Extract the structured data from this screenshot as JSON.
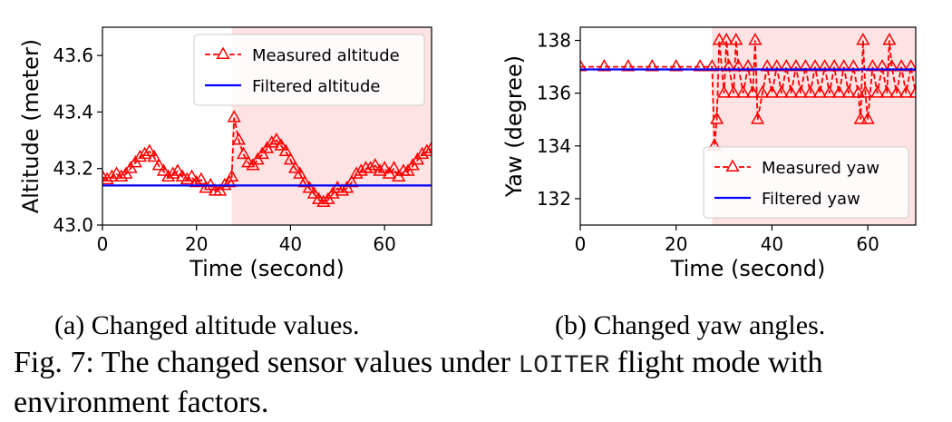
{
  "chart_data": [
    {
      "type": "line",
      "panel": "a",
      "xlabel": "Time (second)",
      "ylabel": "Altitude (meter)",
      "xlim": [
        0,
        70
      ],
      "ylim": [
        43.0,
        43.7
      ],
      "xticks": [
        0,
        20,
        40,
        60
      ],
      "yticks": [
        43.0,
        43.2,
        43.4,
        43.6
      ],
      "ytick_labels": [
        "43.0",
        "43.2",
        "43.4",
        "43.6"
      ],
      "shaded_region": [
        27.5,
        70
      ],
      "legend_position": "top-right",
      "grid": false,
      "series": [
        {
          "name": "Measured altitude",
          "color": "#ff0000",
          "style": "dashed-triangle",
          "x": [
            0,
            1,
            2,
            3,
            4,
            5,
            6,
            7,
            8,
            9,
            10,
            11,
            12,
            13,
            14,
            15,
            16,
            17,
            18,
            19,
            20,
            21,
            22,
            23,
            24,
            25,
            26,
            27,
            27.5,
            28,
            29,
            30,
            31,
            32,
            33,
            34,
            35,
            36,
            37,
            38,
            39,
            40,
            41,
            42,
            43,
            44,
            45,
            46,
            47,
            48,
            49,
            50,
            51,
            52,
            53,
            54,
            55,
            56,
            57,
            58,
            59,
            60,
            61,
            62,
            63,
            64,
            65,
            66,
            67,
            68,
            69,
            70
          ],
          "y": [
            43.17,
            43.16,
            43.17,
            43.18,
            43.17,
            43.18,
            43.2,
            43.22,
            43.24,
            43.25,
            43.26,
            43.24,
            43.21,
            43.19,
            43.17,
            43.18,
            43.19,
            43.17,
            43.16,
            43.17,
            43.15,
            43.16,
            43.13,
            43.14,
            43.12,
            43.12,
            43.14,
            43.15,
            43.17,
            43.38,
            43.3,
            43.25,
            43.22,
            43.21,
            43.23,
            43.25,
            43.27,
            43.29,
            43.3,
            43.28,
            43.26,
            43.23,
            43.2,
            43.18,
            43.15,
            43.13,
            43.11,
            43.09,
            43.08,
            43.09,
            43.11,
            43.13,
            43.12,
            43.13,
            43.15,
            43.18,
            43.19,
            43.2,
            43.2,
            43.21,
            43.19,
            43.2,
            43.18,
            43.2,
            43.17,
            43.19,
            43.19,
            43.21,
            43.23,
            43.25,
            43.26,
            43.27
          ]
        },
        {
          "name": "Filtered altitude",
          "color": "#0000ff",
          "style": "solid",
          "x": [
            0,
            10,
            20,
            27.5,
            30,
            40,
            50,
            60,
            70
          ],
          "y": [
            43.14,
            43.14,
            43.14,
            43.14,
            43.14,
            43.14,
            43.14,
            43.14,
            43.14
          ]
        }
      ]
    },
    {
      "type": "line",
      "panel": "b",
      "xlabel": "Time (second)",
      "ylabel": "Yaw (degree)",
      "xlim": [
        0,
        70
      ],
      "ylim": [
        131,
        138.5
      ],
      "xticks": [
        0,
        20,
        40,
        60
      ],
      "yticks": [
        132,
        134,
        136,
        138
      ],
      "ytick_labels": [
        "132",
        "134",
        "136",
        "138"
      ],
      "shaded_region": [
        27.5,
        70
      ],
      "legend_position": "bottom-right",
      "grid": false,
      "series": [
        {
          "name": "Measured yaw",
          "color": "#ff0000",
          "style": "dashed-triangle",
          "x": [
            0,
            5,
            10,
            15,
            20,
            25,
            27.5,
            28,
            28.5,
            29,
            30,
            30.5,
            31,
            32,
            32.5,
            33,
            34,
            35,
            36,
            36.5,
            37,
            38,
            39,
            40,
            41,
            42,
            43,
            44,
            45,
            46,
            47,
            48,
            49,
            50,
            51,
            52,
            53,
            54,
            55,
            56,
            57,
            58,
            58.5,
            59,
            59.5,
            60,
            61,
            62,
            63,
            64,
            64.5,
            65,
            66,
            67,
            68,
            69,
            70
          ],
          "y": [
            137,
            137,
            137,
            137,
            137,
            137,
            137,
            134,
            135,
            138,
            136,
            138,
            137,
            136,
            138,
            137,
            136,
            137,
            136,
            138,
            135,
            136,
            137,
            136,
            137,
            136,
            137,
            136,
            137,
            136,
            137,
            136,
            137,
            136,
            137,
            136,
            137,
            136,
            137,
            136,
            137,
            136,
            135,
            138,
            136,
            135,
            137,
            136,
            137,
            136,
            138,
            137,
            136,
            137,
            136,
            137,
            136
          ]
        },
        {
          "name": "Filtered yaw",
          "color": "#0000ff",
          "style": "solid",
          "x": [
            0,
            10,
            20,
            30,
            40,
            50,
            60,
            70
          ],
          "y": [
            136.9,
            136.9,
            136.9,
            136.9,
            136.9,
            136.9,
            136.9,
            136.9
          ]
        }
      ]
    }
  ],
  "captions": {
    "a": "(a) Changed altitude values.",
    "b": "(b) Changed yaw angles.",
    "figure_prefix": "Fig. 7: The changed sensor values under ",
    "figure_mode": "LOITER",
    "figure_suffix": " flight mode with environment factors."
  },
  "colors": {
    "measured": "#ff0000",
    "filtered": "#0000ff",
    "shade": "#fde3e3"
  }
}
